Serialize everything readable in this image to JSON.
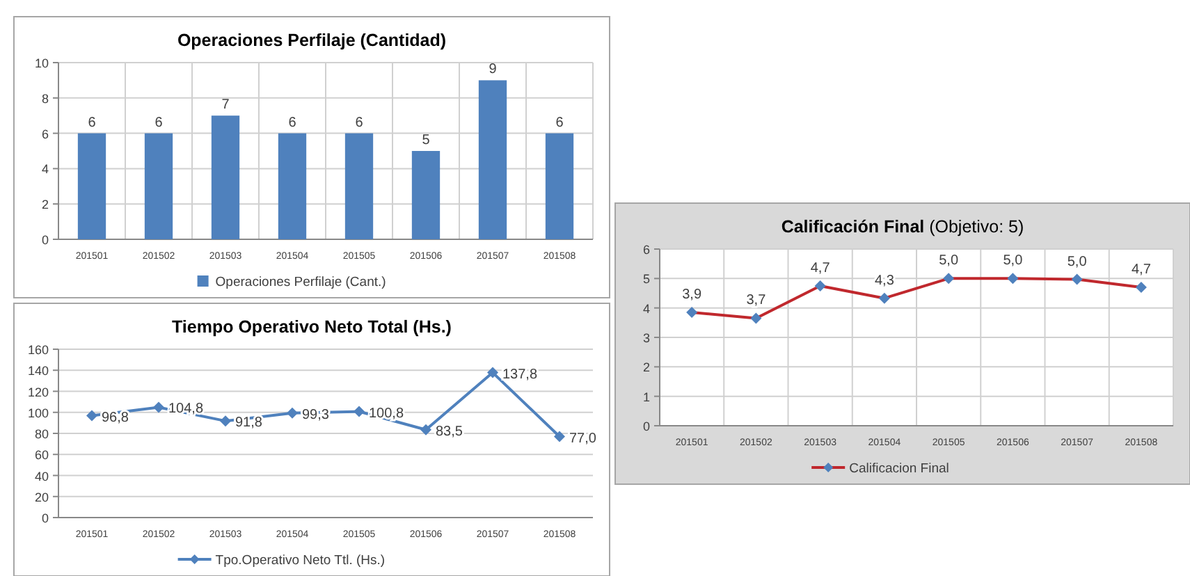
{
  "chart_data": [
    {
      "type": "bar",
      "title": "Operaciones Perfilaje (Cantidad)",
      "categories": [
        "201501",
        "201502",
        "201503",
        "201504",
        "201505",
        "201506",
        "201507",
        "201508"
      ],
      "series": [
        {
          "name": "Operaciones Perfilaje (Cant.)",
          "color": "#4f81bd",
          "values": [
            6,
            6,
            7,
            6,
            6,
            5,
            9,
            6
          ]
        }
      ],
      "ylim": [
        0,
        10
      ],
      "yticks": [
        0,
        2,
        4,
        6,
        8,
        10
      ],
      "grid": true,
      "legend": "bottom",
      "data_labels": true
    },
    {
      "type": "line",
      "title": "Tiempo Operativo Neto Total (Hs.)",
      "categories": [
        "201501",
        "201502",
        "201503",
        "201504",
        "201505",
        "201506",
        "201507",
        "201508"
      ],
      "series": [
        {
          "name": "Tpo.Operativo Neto Ttl. (Hs.)",
          "color": "#4f81bd",
          "values": [
            96.8,
            104.8,
            91.8,
            99.3,
            100.8,
            83.5,
            137.8,
            77.0
          ],
          "value_labels": [
            "96,8",
            "104,8",
            "91,8",
            "99,3",
            "100,8",
            "83,5",
            "137,8",
            "77,0"
          ]
        }
      ],
      "ylim": [
        0,
        160
      ],
      "yticks": [
        0,
        20,
        40,
        60,
        80,
        100,
        120,
        140,
        160
      ],
      "grid": "y",
      "legend": "bottom",
      "marker": "diamond",
      "line_style": "solid"
    },
    {
      "type": "line",
      "title": "Calificación Final",
      "subtitle": "(Objetivo: 5)",
      "categories": [
        "201501",
        "201502",
        "201503",
        "201504",
        "201505",
        "201506",
        "201507",
        "201508"
      ],
      "series": [
        {
          "name": "Calificacion Final",
          "color": "#c0282d",
          "colors": [
            "#4f81bd",
            "#4f81bd",
            "#4f81bd",
            "#4f81bd",
            "#4f81bd",
            "#4f81bd",
            "#4f81bd",
            "#4f81bd"
          ],
          "values": [
            3.85,
            3.65,
            4.75,
            4.33,
            5.0,
            5.0,
            4.97,
            4.7
          ],
          "value_labels": [
            "3,9",
            "3,7",
            "4,7",
            "4,3",
            "5,0",
            "5,0",
            "5,0",
            "4,7"
          ]
        }
      ],
      "ylim": [
        0,
        6
      ],
      "yticks": [
        0,
        1,
        2,
        3,
        4,
        5,
        6
      ],
      "grid": true,
      "legend": "bottom",
      "marker": "diamond",
      "line_style": "solid"
    }
  ]
}
